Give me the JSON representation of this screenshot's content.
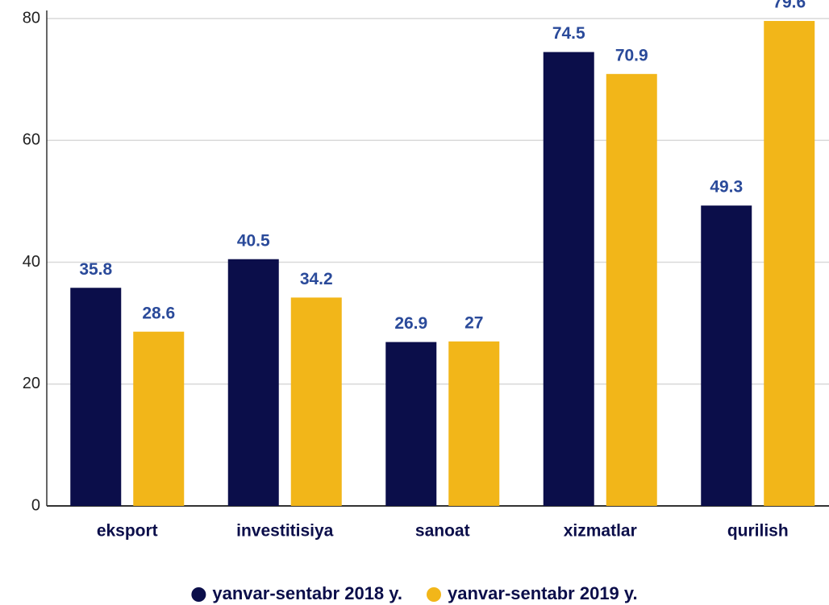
{
  "chart_data": {
    "type": "bar",
    "categories": [
      "eksport",
      "investitisiya",
      "sanoat",
      "xizmatlar",
      "qurilish"
    ],
    "series": [
      {
        "name": "yanvar-sentabr 2018 y.",
        "color": "#0b0e4a",
        "values": [
          35.8,
          40.5,
          26.9,
          74.5,
          49.3
        ]
      },
      {
        "name": "yanvar-sentabr 2019 y.",
        "color": "#f2b619",
        "values": [
          28.6,
          34.2,
          27,
          70.9,
          79.6
        ]
      }
    ],
    "ylim": [
      0,
      80
    ],
    "yticks": [
      0,
      20,
      40,
      60,
      80
    ],
    "grid": true,
    "legend": "bottom"
  }
}
